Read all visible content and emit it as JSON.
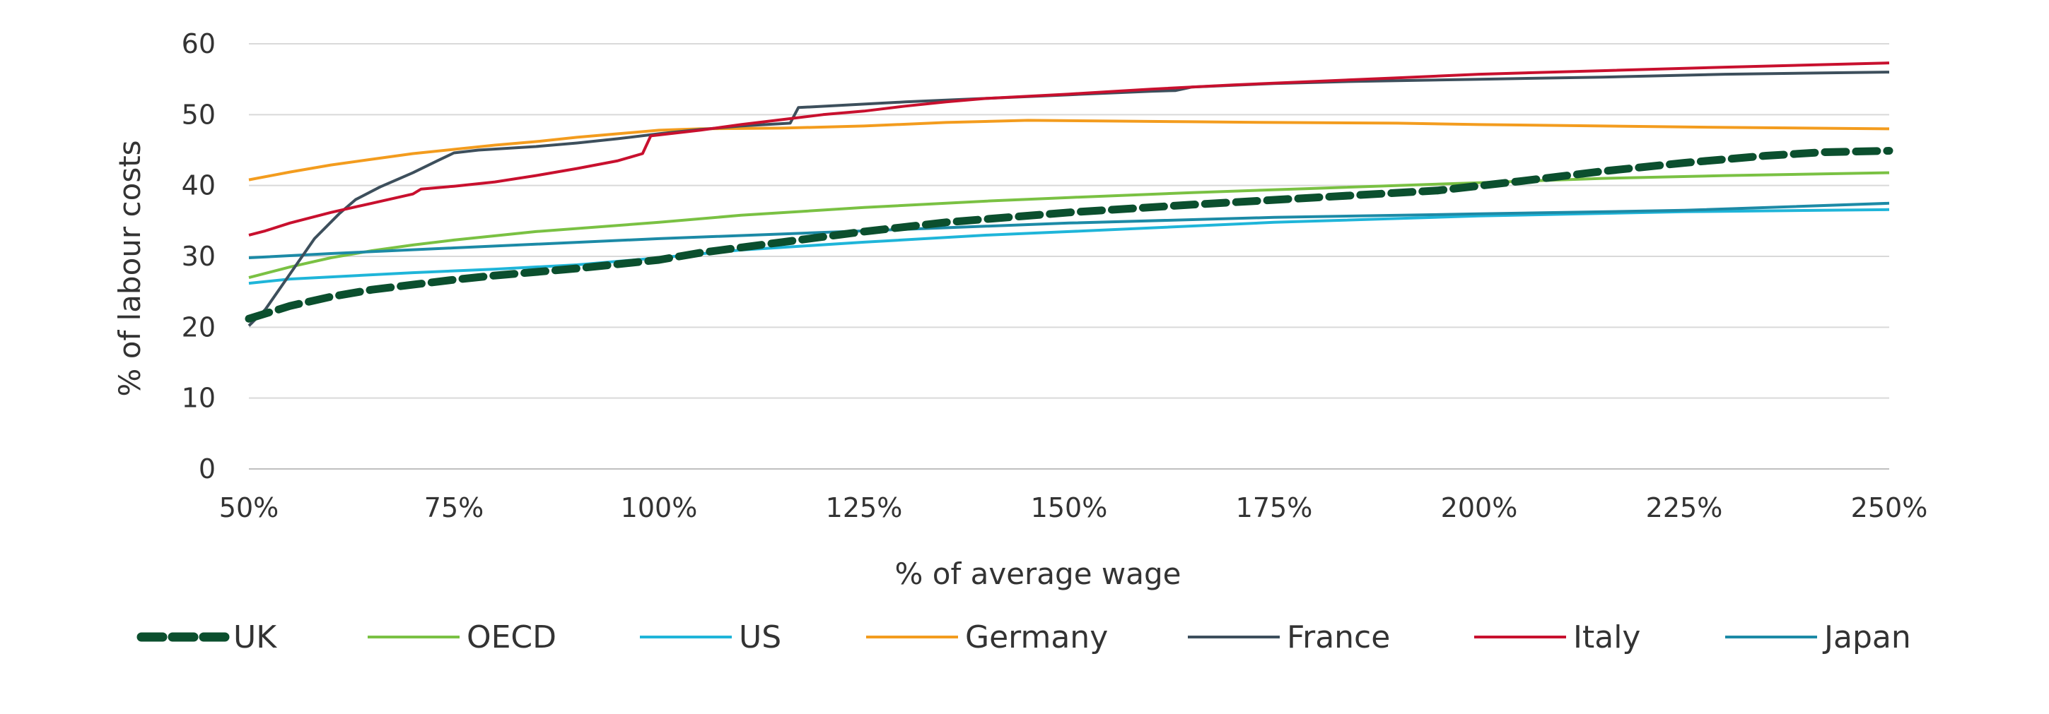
{
  "chart_data": {
    "type": "line",
    "title": "",
    "xlabel": "% of average wage",
    "ylabel": "% of labour costs",
    "xlim": [
      50,
      250
    ],
    "ylim": [
      0,
      60
    ],
    "x_ticks": [
      50,
      75,
      100,
      125,
      150,
      175,
      200,
      225,
      250
    ],
    "x_tick_labels": [
      "50%",
      "75%",
      "100%",
      "125%",
      "150%",
      "175%",
      "200%",
      "225%",
      "250%"
    ],
    "y_ticks": [
      0,
      10,
      20,
      30,
      40,
      50,
      60
    ],
    "y_tick_labels": [
      "0",
      "10",
      "20",
      "30",
      "40",
      "50",
      "60"
    ],
    "grid": "horizontal",
    "legend_position": "bottom",
    "series": [
      {
        "name": "UK",
        "color": "#0b4f2e",
        "style": "dashed",
        "points": [
          [
            50,
            21.2
          ],
          [
            55,
            23.0
          ],
          [
            60,
            24.3
          ],
          [
            65,
            25.3
          ],
          [
            70,
            26.0
          ],
          [
            75,
            26.7
          ],
          [
            80,
            27.3
          ],
          [
            90,
            28.3
          ],
          [
            100,
            29.5
          ],
          [
            105,
            30.5
          ],
          [
            115,
            32.0
          ],
          [
            125,
            33.5
          ],
          [
            135,
            34.8
          ],
          [
            150,
            36.2
          ],
          [
            165,
            37.3
          ],
          [
            180,
            38.3
          ],
          [
            195,
            39.3
          ],
          [
            205,
            40.6
          ],
          [
            215,
            42.0
          ],
          [
            225,
            43.2
          ],
          [
            235,
            44.2
          ],
          [
            242,
            44.7
          ],
          [
            250,
            44.9
          ]
        ]
      },
      {
        "name": "OECD",
        "color": "#7ac143",
        "style": "solid",
        "points": [
          [
            50,
            27.0
          ],
          [
            55,
            28.5
          ],
          [
            60,
            29.8
          ],
          [
            65,
            30.8
          ],
          [
            70,
            31.6
          ],
          [
            75,
            32.3
          ],
          [
            85,
            33.5
          ],
          [
            100,
            34.8
          ],
          [
            110,
            35.8
          ],
          [
            125,
            36.9
          ],
          [
            140,
            37.8
          ],
          [
            150,
            38.3
          ],
          [
            165,
            39.0
          ],
          [
            180,
            39.6
          ],
          [
            200,
            40.4
          ],
          [
            215,
            41.0
          ],
          [
            230,
            41.4
          ],
          [
            250,
            41.8
          ]
        ]
      },
      {
        "name": "US",
        "color": "#1fb5d9",
        "style": "solid",
        "points": [
          [
            50,
            26.2
          ],
          [
            55,
            26.8
          ],
          [
            60,
            27.1
          ],
          [
            70,
            27.7
          ],
          [
            80,
            28.2
          ],
          [
            90,
            28.8
          ],
          [
            100,
            29.8
          ],
          [
            110,
            30.9
          ],
          [
            125,
            32.0
          ],
          [
            140,
            33.0
          ],
          [
            150,
            33.5
          ],
          [
            175,
            34.8
          ],
          [
            200,
            35.7
          ],
          [
            225,
            36.3
          ],
          [
            250,
            36.6
          ]
        ]
      },
      {
        "name": "Germany",
        "color": "#f39c1e",
        "style": "solid",
        "points": [
          [
            50,
            40.8
          ],
          [
            55,
            41.9
          ],
          [
            60,
            42.9
          ],
          [
            65,
            43.7
          ],
          [
            70,
            44.5
          ],
          [
            75,
            45.1
          ],
          [
            80,
            45.7
          ],
          [
            85,
            46.2
          ],
          [
            90,
            46.8
          ],
          [
            95,
            47.3
          ],
          [
            100,
            47.8
          ],
          [
            105,
            48.0
          ],
          [
            115,
            48.1
          ],
          [
            125,
            48.4
          ],
          [
            135,
            48.9
          ],
          [
            145,
            49.2
          ],
          [
            155,
            49.1
          ],
          [
            165,
            49.0
          ],
          [
            175,
            48.9
          ],
          [
            190,
            48.8
          ],
          [
            200,
            48.6
          ],
          [
            215,
            48.4
          ],
          [
            230,
            48.2
          ],
          [
            250,
            48.0
          ]
        ]
      },
      {
        "name": "France",
        "color": "#3d4f5c",
        "style": "solid",
        "points": [
          [
            50,
            20.2
          ],
          [
            52,
            22.5
          ],
          [
            55,
            27.5
          ],
          [
            58,
            32.5
          ],
          [
            61,
            36.0
          ],
          [
            63,
            38.0
          ],
          [
            66,
            39.8
          ],
          [
            70,
            41.8
          ],
          [
            73,
            43.5
          ],
          [
            75,
            44.6
          ],
          [
            78,
            45.0
          ],
          [
            85,
            45.5
          ],
          [
            90,
            46.0
          ],
          [
            95,
            46.6
          ],
          [
            100,
            47.3
          ],
          [
            105,
            47.9
          ],
          [
            110,
            48.4
          ],
          [
            116,
            48.8
          ],
          [
            117,
            51.0
          ],
          [
            122,
            51.3
          ],
          [
            130,
            51.8
          ],
          [
            140,
            52.3
          ],
          [
            150,
            52.8
          ],
          [
            160,
            53.3
          ],
          [
            163,
            53.4
          ],
          [
            165,
            53.9
          ],
          [
            175,
            54.4
          ],
          [
            185,
            54.7
          ],
          [
            200,
            55.0
          ],
          [
            215,
            55.3
          ],
          [
            230,
            55.7
          ],
          [
            250,
            56.0
          ]
        ]
      },
      {
        "name": "Italy",
        "color": "#c8102e",
        "style": "solid",
        "points": [
          [
            50,
            33.0
          ],
          [
            52,
            33.6
          ],
          [
            55,
            34.7
          ],
          [
            60,
            36.2
          ],
          [
            65,
            37.5
          ],
          [
            70,
            38.8
          ],
          [
            71,
            39.5
          ],
          [
            75,
            39.9
          ],
          [
            80,
            40.5
          ],
          [
            85,
            41.4
          ],
          [
            90,
            42.4
          ],
          [
            95,
            43.5
          ],
          [
            98,
            44.5
          ],
          [
            99,
            47.0
          ],
          [
            105,
            47.8
          ],
          [
            110,
            48.6
          ],
          [
            115,
            49.3
          ],
          [
            120,
            50.0
          ],
          [
            125,
            50.5
          ],
          [
            130,
            51.2
          ],
          [
            135,
            51.8
          ],
          [
            140,
            52.3
          ],
          [
            150,
            52.9
          ],
          [
            160,
            53.6
          ],
          [
            170,
            54.2
          ],
          [
            180,
            54.7
          ],
          [
            190,
            55.2
          ],
          [
            200,
            55.7
          ],
          [
            215,
            56.2
          ],
          [
            230,
            56.7
          ],
          [
            250,
            57.3
          ]
        ]
      },
      {
        "name": "Japan",
        "color": "#1c8aa6",
        "style": "solid",
        "points": [
          [
            50,
            29.8
          ],
          [
            60,
            30.4
          ],
          [
            75,
            31.2
          ],
          [
            100,
            32.5
          ],
          [
            125,
            33.6
          ],
          [
            150,
            34.7
          ],
          [
            175,
            35.5
          ],
          [
            200,
            36.0
          ],
          [
            225,
            36.5
          ],
          [
            250,
            37.5
          ]
        ]
      }
    ]
  }
}
